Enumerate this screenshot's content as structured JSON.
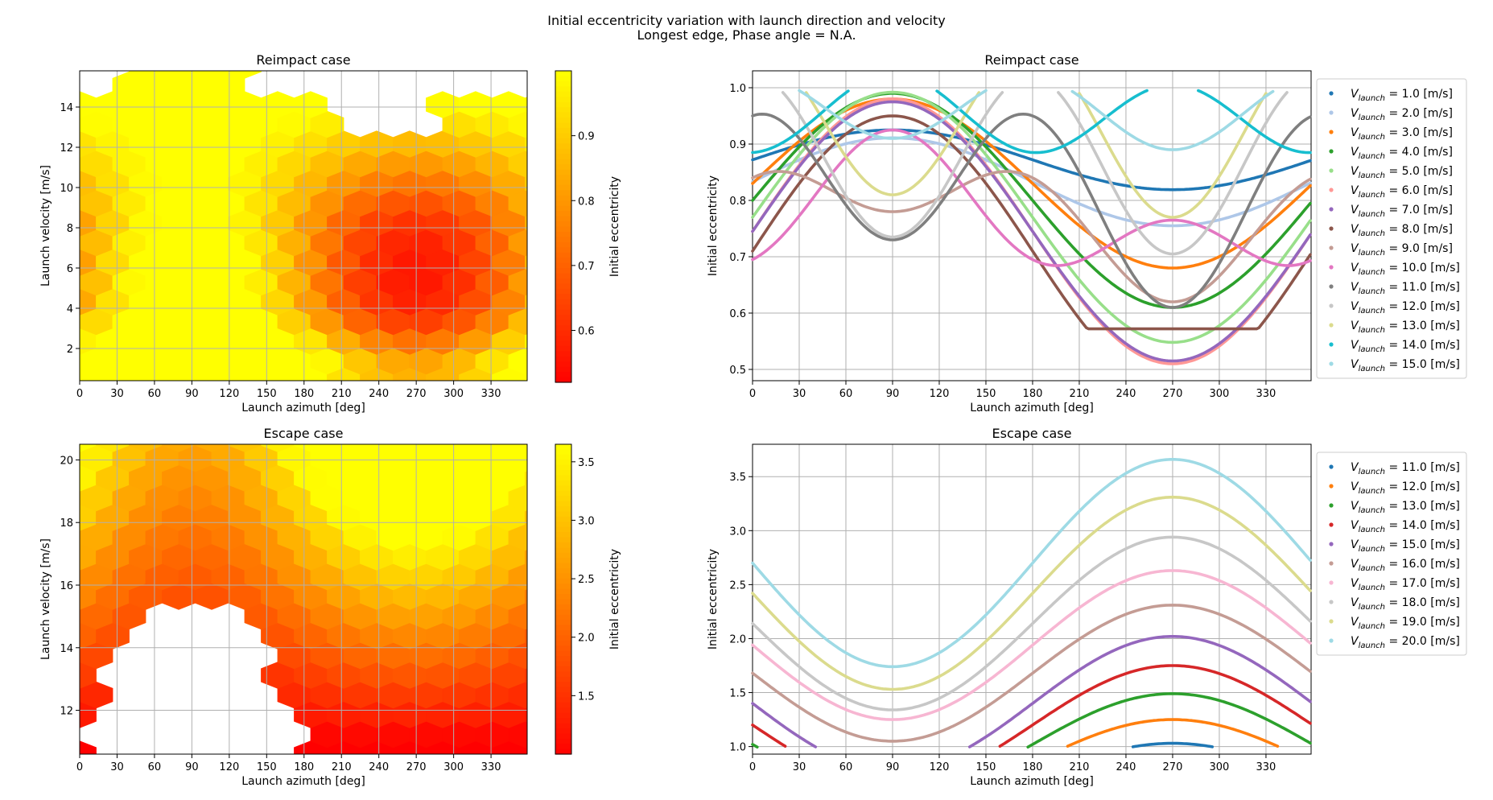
{
  "figure": {
    "suptitle_line1": "Initial eccentricity variation with launch direction and velocity",
    "suptitle_line2": "Longest edge,              Phase angle = N.A."
  },
  "chart_data": [
    {
      "type": "heatmap",
      "title": "Reimpact case",
      "xlabel": "Launch azimuth [deg]",
      "ylabel": "Launch velocity [m/s]",
      "xlim": [
        0,
        359
      ],
      "ylim": [
        0.4,
        15.8
      ],
      "xticks": [
        0,
        30,
        60,
        90,
        120,
        150,
        180,
        210,
        240,
        270,
        300,
        330
      ],
      "yticks": [
        2,
        4,
        6,
        8,
        10,
        12,
        14
      ],
      "grid": true,
      "colorbar": {
        "label": "Initial eccentricity",
        "range": [
          0.52,
          1.0
        ],
        "ticks": [
          0.6,
          0.7,
          0.8,
          0.9
        ],
        "colormap": "autumn"
      },
      "hex_columns_x": [
        0,
        16,
        32,
        48,
        64,
        80,
        96,
        112,
        128,
        144,
        160,
        176,
        192,
        208,
        224,
        240,
        256,
        272,
        288,
        304,
        320,
        336,
        352
      ],
      "hex_rows_y": [
        1,
        2,
        3,
        4,
        5,
        6,
        7,
        8,
        9,
        10,
        11,
        12,
        13,
        14,
        15
      ],
      "features": {
        "high_center": {
          "azimuth": 90,
          "velocity": 5,
          "value": 1.0
        },
        "low_center": {
          "azimuth": 270,
          "velocity": 6.5,
          "value": 0.52
        }
      }
    },
    {
      "type": "line",
      "title": "Reimpact case",
      "xlabel": "Launch azimuth [deg]",
      "ylabel": "Initial eccentricity",
      "xlim": [
        0,
        359
      ],
      "ylim": [
        0.48,
        1.03
      ],
      "xticks": [
        0,
        30,
        60,
        90,
        120,
        150,
        180,
        210,
        240,
        270,
        300,
        330
      ],
      "yticks": [
        0.5,
        0.6,
        0.7,
        0.8,
        0.9,
        1.0
      ],
      "grid": true,
      "legend_position": "outside-right",
      "legend_unit": "[m/s]",
      "legend_var": "V",
      "legend_sub": "launch",
      "series": [
        {
          "name": "1.0",
          "color": "#1f77b4",
          "mean": 0.872,
          "amp": 0.053,
          "x": [
            0,
            359
          ]
        },
        {
          "name": "2.0",
          "color": "#aec7e8",
          "mean": 0.833,
          "amp": 0.078,
          "x": [
            0,
            359
          ]
        },
        {
          "name": "3.0",
          "color": "#ff7f0e",
          "mean": 0.83,
          "amp": 0.15,
          "x": [
            0,
            359
          ]
        },
        {
          "name": "4.0",
          "color": "#2ca02c",
          "mean": 0.8,
          "amp": 0.19,
          "x": [
            0,
            359
          ]
        },
        {
          "name": "5.0",
          "color": "#98df8a",
          "mean": 0.77,
          "amp": 0.222,
          "x": [
            0,
            359
          ]
        },
        {
          "name": "6.0",
          "color": "#ff9896",
          "mean": 0.745,
          "amp": 0.235,
          "x": [
            0,
            359
          ]
        },
        {
          "name": "7.0",
          "color": "#9467bd",
          "mean": 0.745,
          "amp": 0.23,
          "x": [
            0,
            359
          ]
        },
        {
          "name": "8.0",
          "color": "#8c564b",
          "mean": 0.71,
          "amp": 0.24,
          "x": [
            0,
            359
          ],
          "flat_below": 0.572
        },
        {
          "name": "9.0",
          "color": "#c49c94",
          "mean": 0.77,
          "amp": 0.08,
          "x": [
            0,
            359
          ],
          "harmonic2": 0.07
        },
        {
          "name": "10.0",
          "color": "#e377c2",
          "mean": 0.77,
          "amp": 0.08,
          "x": [
            0,
            359
          ],
          "harmonic2": -0.075
        },
        {
          "name": "11.0",
          "color": "#7f7f7f",
          "mean": 0.81,
          "amp": 0.06,
          "x": [
            0,
            359
          ],
          "harmonic2": 0.14,
          "cutoff": 0.995
        },
        {
          "name": "12.0",
          "color": "#c7c7c7",
          "mean": 0.87,
          "amp": 0.015,
          "x": [
            0,
            359
          ],
          "harmonic2": 0.15,
          "cutoff": 0.995
        },
        {
          "name": "13.0",
          "color": "#dbdb8d",
          "mean": 0.93,
          "amp": 0.02,
          "x": [
            0,
            359
          ],
          "harmonic2": 0.14,
          "cutoff": 0.995
        },
        {
          "name": "14.0",
          "color": "#17becf",
          "mean": 0.95,
          "amp": 0.01,
          "x": [
            0,
            359
          ],
          "harmonic2": -0.065,
          "cutoff": 0.995
        },
        {
          "name": "15.0",
          "color": "#9edae5",
          "mean": 0.96,
          "amp": 0.01,
          "x": [
            0,
            359
          ],
          "harmonic2": 0.06,
          "cutoff": 0.995
        }
      ]
    },
    {
      "type": "heatmap",
      "title": "Escape case",
      "xlabel": "Launch azimuth [deg]",
      "ylabel": "Launch velocity [m/s]",
      "xlim": [
        0,
        359
      ],
      "ylim": [
        10.6,
        20.5
      ],
      "xticks": [
        0,
        30,
        60,
        90,
        120,
        150,
        180,
        210,
        240,
        270,
        300,
        330
      ],
      "yticks": [
        12,
        14,
        16,
        18,
        20
      ],
      "grid": true,
      "colorbar": {
        "label": "Initial eccentricity",
        "range": [
          1.0,
          3.65
        ],
        "ticks": [
          1.5,
          2.0,
          2.5,
          3.0,
          3.5
        ],
        "colormap": "autumn"
      },
      "features": {
        "high_center": {
          "azimuth": 270,
          "velocity": 20,
          "value": 3.65
        },
        "low_center": {
          "azimuth": 90,
          "velocity": 14,
          "value": 1.0
        }
      }
    },
    {
      "type": "line",
      "title": "Escape case",
      "xlabel": "Launch azimuth [deg]",
      "ylabel": "Initial eccentricity",
      "xlim": [
        0,
        359
      ],
      "ylim": [
        0.93,
        3.8
      ],
      "xticks": [
        0,
        30,
        60,
        90,
        120,
        150,
        180,
        210,
        240,
        270,
        300,
        330
      ],
      "yticks": [
        1.0,
        1.5,
        2.0,
        2.5,
        3.0,
        3.5
      ],
      "grid": true,
      "legend_position": "outside-right",
      "legend_unit": "[m/s]",
      "legend_var": "V",
      "legend_sub": "launch",
      "series": [
        {
          "name": "11.0",
          "color": "#1f77b4",
          "mean": 0.7,
          "amp": 0.33
        },
        {
          "name": "12.0",
          "color": "#ff7f0e",
          "mean": 0.85,
          "amp": 0.4
        },
        {
          "name": "13.0",
          "color": "#2ca02c",
          "mean": 1.02,
          "amp": 0.47
        },
        {
          "name": "14.0",
          "color": "#d62728",
          "mean": 1.2,
          "amp": 0.55
        },
        {
          "name": "15.0",
          "color": "#9467bd",
          "mean": 1.4,
          "amp": 0.62
        },
        {
          "name": "16.0",
          "color": "#c49c94",
          "mean": 1.68,
          "amp": 0.63
        },
        {
          "name": "17.0",
          "color": "#f7b6d2",
          "mean": 1.94,
          "amp": 0.69
        },
        {
          "name": "18.0",
          "color": "#c7c7c7",
          "mean": 2.14,
          "amp": 0.8
        },
        {
          "name": "19.0",
          "color": "#dbdb8d",
          "mean": 2.42,
          "amp": 0.89
        },
        {
          "name": "20.0",
          "color": "#9edae5",
          "mean": 2.7,
          "amp": 0.96
        }
      ]
    }
  ]
}
